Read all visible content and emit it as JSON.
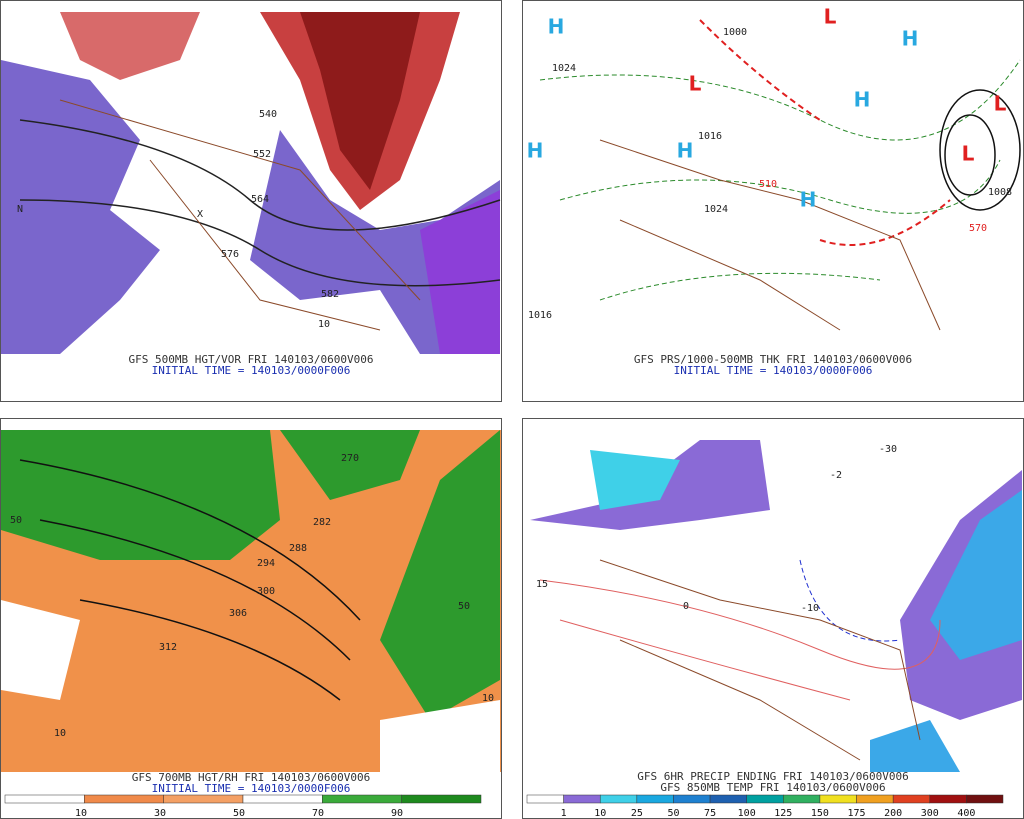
{
  "panels": [
    {
      "caption": "GFS 500MB HGT/VOR FRI 140103/0600V006",
      "subcaption": "INITIAL TIME = 140103/0000F006",
      "map_labels": [
        "540",
        "552",
        "564",
        "576",
        "582",
        "10",
        "N",
        "X"
      ]
    },
    {
      "caption": "GFS PRS/1000-500MB THK FRI 140103/0600V006",
      "subcaption": "INITIAL TIME = 140103/0000F006",
      "map_labels": [
        "H",
        "H",
        "H",
        "H",
        "H",
        "H",
        "L",
        "L",
        "L",
        "L",
        "1024",
        "1000",
        "1016",
        "1024",
        "1008",
        "1016",
        "570",
        "510"
      ]
    },
    {
      "caption": "GFS 700MB HGT/RH FRI 140103/0600V006",
      "subcaption": "INITIAL TIME = 140103/0000F006",
      "map_labels": [
        "50",
        "10",
        "270",
        "282",
        "288",
        "294",
        "300",
        "306",
        "312",
        "50",
        "10"
      ],
      "legend": [
        "10",
        "30",
        "50",
        "70",
        "90"
      ]
    },
    {
      "caption": "GFS 6HR PRECIP ENDING FRI 140103/0600V006",
      "subcaption": "GFS 850MB TEMP FRI 140103/0600V006",
      "map_labels": [
        "-30",
        "-10",
        "-2",
        "15",
        "0"
      ],
      "legend": [
        "1",
        "10",
        "25",
        "50",
        "75",
        "100",
        "125",
        "150",
        "175",
        "200",
        "300",
        "400"
      ]
    }
  ]
}
